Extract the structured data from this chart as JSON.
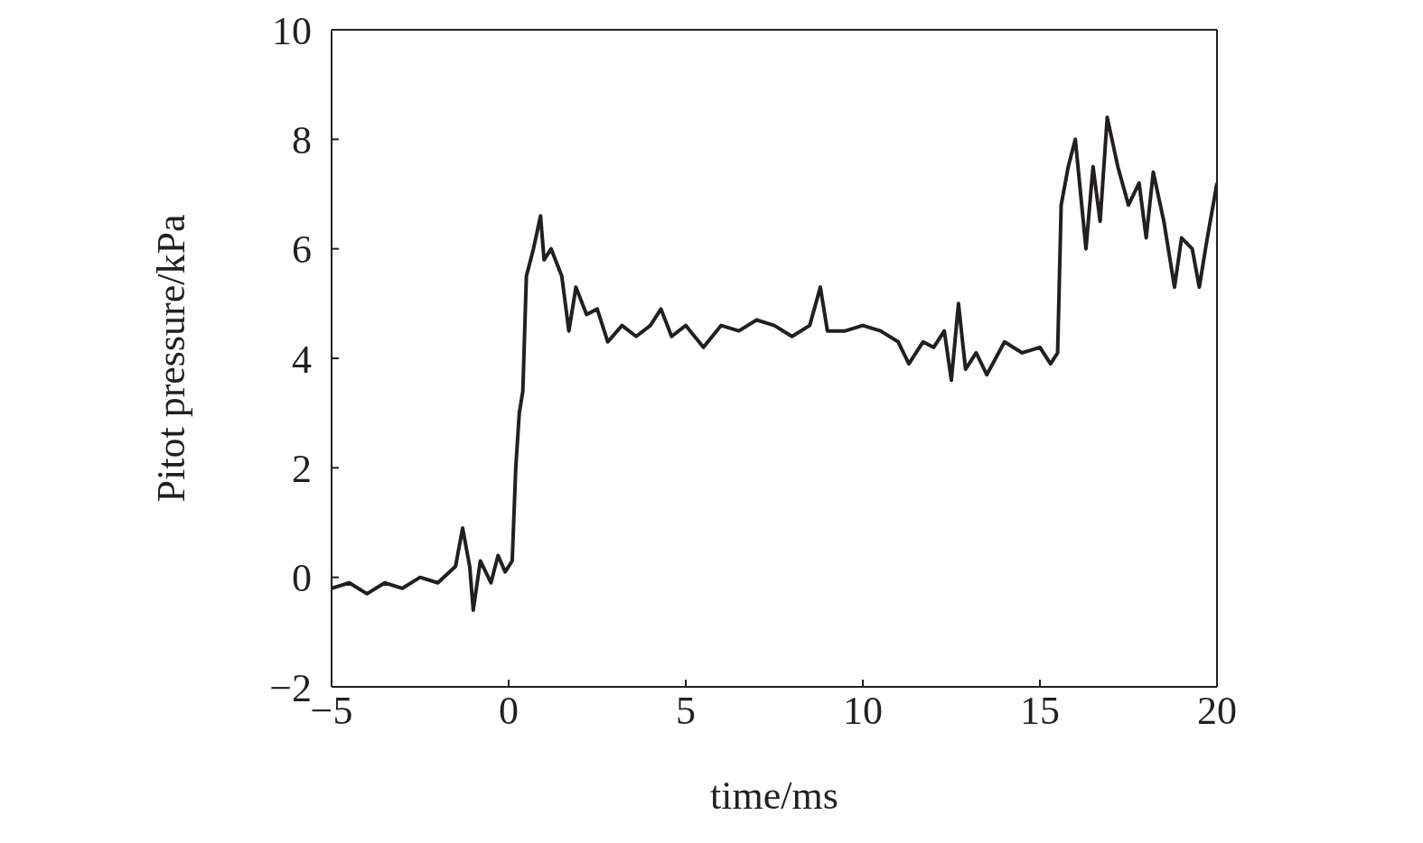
{
  "chart_data": {
    "type": "line",
    "xlabel": "time/ms",
    "ylabel": "Pitot pressure/kPa",
    "xlim": [
      -5,
      20
    ],
    "xticks": [
      {
        "value": -5,
        "label": "−5"
      },
      0,
      5,
      10,
      15,
      20
    ],
    "ylim": [
      -2,
      10
    ],
    "yticks": [
      {
        "value": -2,
        "label": "−2"
      },
      0,
      2,
      4,
      6,
      8,
      10
    ],
    "grid": false,
    "legend": false,
    "marker": "none",
    "line_style": "solid",
    "x": [
      -5,
      -4.5,
      -4,
      -3.5,
      -3,
      -2.5,
      -2,
      -1.5,
      -1.3,
      -1.1,
      -1,
      -0.8,
      -0.5,
      -0.3,
      -0.1,
      0.1,
      0.2,
      0.3,
      0.4,
      0.5,
      0.7,
      0.9,
      1,
      1.2,
      1.5,
      1.7,
      1.9,
      2.2,
      2.5,
      2.8,
      3.2,
      3.6,
      4,
      4.3,
      4.6,
      5,
      5.5,
      6,
      6.5,
      7,
      7.5,
      8,
      8.5,
      8.8,
      9,
      9.5,
      10,
      10.5,
      11,
      11.3,
      11.7,
      12,
      12.3,
      12.5,
      12.7,
      12.9,
      13.2,
      13.5,
      14,
      14.5,
      15,
      15.3,
      15.5,
      15.6,
      15.8,
      16,
      16.3,
      16.5,
      16.7,
      16.9,
      17.2,
      17.5,
      17.8,
      18,
      18.2,
      18.5,
      18.8,
      19,
      19.3,
      19.5,
      19.7,
      20
    ],
    "series": [
      {
        "color": "#231f20",
        "values": [
          -0.2,
          -0.1,
          -0.3,
          -0.1,
          -0.2,
          0,
          -0.1,
          0.2,
          0.9,
          0.2,
          -0.6,
          0.3,
          -0.1,
          0.4,
          0.1,
          0.3,
          2,
          3,
          3.4,
          5.5,
          6,
          6.6,
          5.8,
          6,
          5.5,
          4.5,
          5.3,
          4.8,
          4.9,
          4.3,
          4.6,
          4.4,
          4.6,
          4.9,
          4.4,
          4.6,
          4.2,
          4.6,
          4.5,
          4.7,
          4.6,
          4.4,
          4.6,
          5.3,
          4.5,
          4.5,
          4.6,
          4.5,
          4.3,
          3.9,
          4.3,
          4.2,
          4.5,
          3.6,
          5,
          3.8,
          4.1,
          3.7,
          4.3,
          4.1,
          4.2,
          3.9,
          4.1,
          6.8,
          7.5,
          8,
          6,
          7.5,
          6.5,
          8.4,
          7.5,
          6.8,
          7.2,
          6.2,
          7.4,
          6.5,
          5.3,
          6.2,
          6,
          5.3,
          6.1,
          7.2
        ]
      }
    ]
  }
}
